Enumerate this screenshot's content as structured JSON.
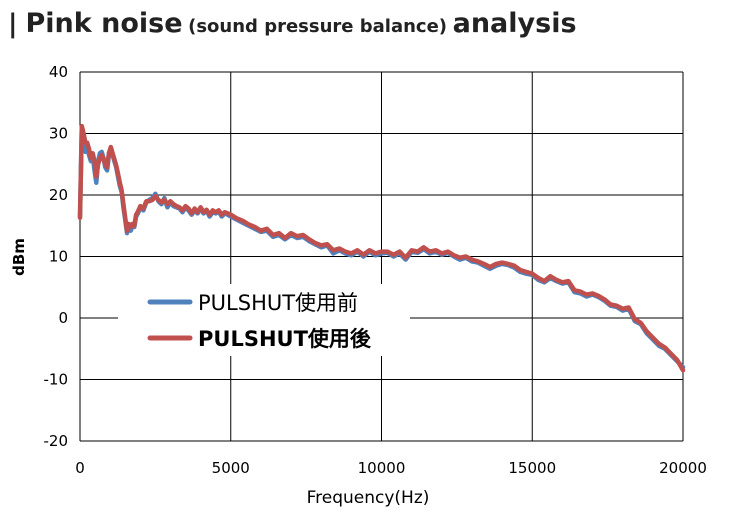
{
  "title": {
    "bar": "|",
    "main": "Pink noise",
    "sub": "(sound pressure balance)",
    "end": "analysis"
  },
  "chart_data": {
    "type": "line",
    "xlabel": "Frequency(Hz)",
    "ylabel": "dBm",
    "xlim": [
      0,
      20000
    ],
    "ylim": [
      -20,
      40
    ],
    "xticks": [
      0,
      5000,
      10000,
      15000,
      20000
    ],
    "yticks": [
      -20,
      -10,
      0,
      10,
      20,
      30,
      40
    ],
    "grid": true,
    "legend_position": "lower-left",
    "series": [
      {
        "name": "PULSHUT使用前",
        "color": "#4f81bd",
        "x": [
          0,
          60,
          120,
          180,
          240,
          300,
          360,
          420,
          480,
          540,
          600,
          660,
          720,
          780,
          840,
          900,
          960,
          1020,
          1080,
          1140,
          1200,
          1260,
          1320,
          1380,
          1440,
          1500,
          1560,
          1620,
          1680,
          1740,
          1800,
          1860,
          1920,
          2000,
          2100,
          2200,
          2300,
          2400,
          2500,
          2600,
          2700,
          2800,
          2900,
          3000,
          3100,
          3200,
          3300,
          3400,
          3500,
          3600,
          3700,
          3800,
          3900,
          4000,
          4100,
          4200,
          4300,
          4400,
          4500,
          4600,
          4700,
          4800,
          4900,
          5000,
          5200,
          5400,
          5600,
          5800,
          6000,
          6200,
          6400,
          6600,
          6800,
          7000,
          7200,
          7400,
          7600,
          7800,
          8000,
          8200,
          8400,
          8600,
          8800,
          9000,
          9200,
          9400,
          9600,
          9800,
          10000,
          10200,
          10400,
          10600,
          10800,
          11000,
          11200,
          11400,
          11600,
          11800,
          12000,
          12200,
          12400,
          12600,
          12800,
          13000,
          13200,
          13400,
          13600,
          13800,
          14000,
          14200,
          14400,
          14600,
          14800,
          15000,
          15200,
          15400,
          15600,
          15800,
          16000,
          16200,
          16400,
          16600,
          16800,
          17000,
          17200,
          17400,
          17600,
          17800,
          18000,
          18200,
          18400,
          18600,
          18800,
          19000,
          19200,
          19400,
          19600,
          19800,
          20000
        ],
        "values": [
          16.5,
          31.0,
          29.5,
          27.0,
          28.0,
          26.5,
          25.5,
          26.5,
          24.0,
          22.0,
          25.5,
          26.8,
          27.0,
          26.0,
          24.5,
          24.0,
          26.5,
          27.5,
          26.5,
          25.5,
          24.5,
          23.0,
          21.5,
          20.5,
          18.0,
          16.0,
          13.8,
          15.0,
          14.2,
          15.0,
          14.8,
          16.5,
          17.0,
          18.0,
          17.5,
          18.8,
          19.2,
          19.5,
          20.2,
          19.0,
          18.5,
          19.5,
          18.0,
          18.8,
          18.2,
          18.0,
          17.8,
          17.2,
          18.0,
          17.5,
          16.8,
          17.5,
          17.0,
          17.8,
          17.0,
          17.5,
          16.5,
          17.2,
          17.0,
          17.3,
          16.5,
          17.0,
          16.8,
          16.5,
          16.0,
          15.5,
          15.0,
          14.5,
          14.0,
          14.2,
          13.2,
          13.5,
          12.8,
          13.5,
          13.0,
          13.2,
          12.5,
          12.0,
          11.5,
          11.8,
          10.5,
          11.0,
          10.5,
          10.2,
          10.8,
          10.0,
          10.8,
          10.2,
          10.5,
          10.6,
          10.0,
          10.5,
          9.5,
          10.8,
          10.6,
          11.2,
          10.5,
          10.8,
          10.3,
          10.6,
          10.0,
          9.5,
          9.8,
          9.2,
          9.0,
          8.5,
          8.0,
          8.5,
          8.8,
          8.6,
          8.2,
          7.5,
          7.2,
          7.0,
          6.2,
          5.8,
          6.5,
          6.0,
          5.6,
          5.8,
          4.2,
          4.0,
          3.5,
          3.8,
          3.4,
          2.8,
          2.0,
          1.8,
          1.2,
          1.5,
          -0.5,
          -1.0,
          -2.5,
          -3.5,
          -4.5,
          -5.0,
          -6.0,
          -7.0,
          -8.0
        ]
      },
      {
        "name": "PULSHUT使用後",
        "color": "#c0504d",
        "x": [
          0,
          60,
          120,
          180,
          240,
          300,
          360,
          420,
          480,
          540,
          600,
          660,
          720,
          780,
          840,
          900,
          960,
          1020,
          1080,
          1140,
          1200,
          1260,
          1320,
          1380,
          1440,
          1500,
          1560,
          1620,
          1680,
          1740,
          1800,
          1860,
          1920,
          2000,
          2100,
          2200,
          2300,
          2400,
          2500,
          2600,
          2700,
          2800,
          2900,
          3000,
          3100,
          3200,
          3300,
          3400,
          3500,
          3600,
          3700,
          3800,
          3900,
          4000,
          4100,
          4200,
          4300,
          4400,
          4500,
          4600,
          4700,
          4800,
          4900,
          5000,
          5200,
          5400,
          5600,
          5800,
          6000,
          6200,
          6400,
          6600,
          6800,
          7000,
          7200,
          7400,
          7600,
          7800,
          8000,
          8200,
          8400,
          8600,
          8800,
          9000,
          9200,
          9400,
          9600,
          9800,
          10000,
          10200,
          10400,
          10600,
          10800,
          11000,
          11200,
          11400,
          11600,
          11800,
          12000,
          12200,
          12400,
          12600,
          12800,
          13000,
          13200,
          13400,
          13600,
          13800,
          14000,
          14200,
          14400,
          14600,
          14800,
          15000,
          15200,
          15400,
          15600,
          15800,
          16000,
          16200,
          16400,
          16600,
          16800,
          17000,
          17200,
          17400,
          17600,
          17800,
          18000,
          18200,
          18400,
          18600,
          18800,
          19000,
          19200,
          19400,
          19600,
          19800,
          20000
        ],
        "values": [
          16.3,
          31.2,
          30.0,
          28.5,
          28.5,
          27.5,
          26.0,
          26.8,
          25.5,
          23.0,
          25.0,
          26.0,
          26.5,
          25.8,
          25.0,
          24.5,
          26.8,
          27.8,
          26.8,
          25.8,
          24.8,
          23.5,
          22.0,
          20.8,
          18.5,
          16.3,
          14.2,
          15.3,
          14.8,
          15.3,
          15.0,
          16.8,
          17.3,
          18.2,
          17.8,
          19.0,
          19.0,
          19.2,
          19.8,
          19.2,
          18.8,
          19.2,
          18.5,
          19.0,
          18.5,
          18.2,
          18.0,
          17.5,
          18.2,
          17.8,
          17.0,
          17.8,
          17.2,
          18.0,
          17.2,
          17.6,
          16.8,
          17.5,
          17.2,
          17.5,
          16.8,
          17.2,
          17.0,
          16.8,
          16.2,
          15.8,
          15.2,
          14.8,
          14.2,
          14.5,
          13.5,
          13.8,
          13.0,
          13.8,
          13.3,
          13.5,
          12.8,
          12.2,
          11.8,
          12.0,
          11.0,
          11.3,
          10.8,
          10.5,
          11.0,
          10.3,
          11.0,
          10.5,
          10.8,
          10.8,
          10.3,
          10.8,
          9.8,
          11.0,
          10.8,
          11.5,
          10.8,
          11.0,
          10.5,
          10.8,
          10.2,
          9.8,
          10.0,
          9.5,
          9.2,
          8.8,
          8.3,
          8.8,
          9.0,
          8.8,
          8.5,
          7.8,
          7.5,
          7.2,
          6.5,
          6.0,
          6.8,
          6.2,
          5.8,
          6.0,
          4.5,
          4.3,
          3.8,
          4.0,
          3.6,
          3.0,
          2.2,
          2.0,
          1.5,
          1.7,
          -0.2,
          -0.8,
          -2.2,
          -3.2,
          -4.2,
          -4.8,
          -5.8,
          -6.8,
          -8.5
        ]
      }
    ]
  }
}
